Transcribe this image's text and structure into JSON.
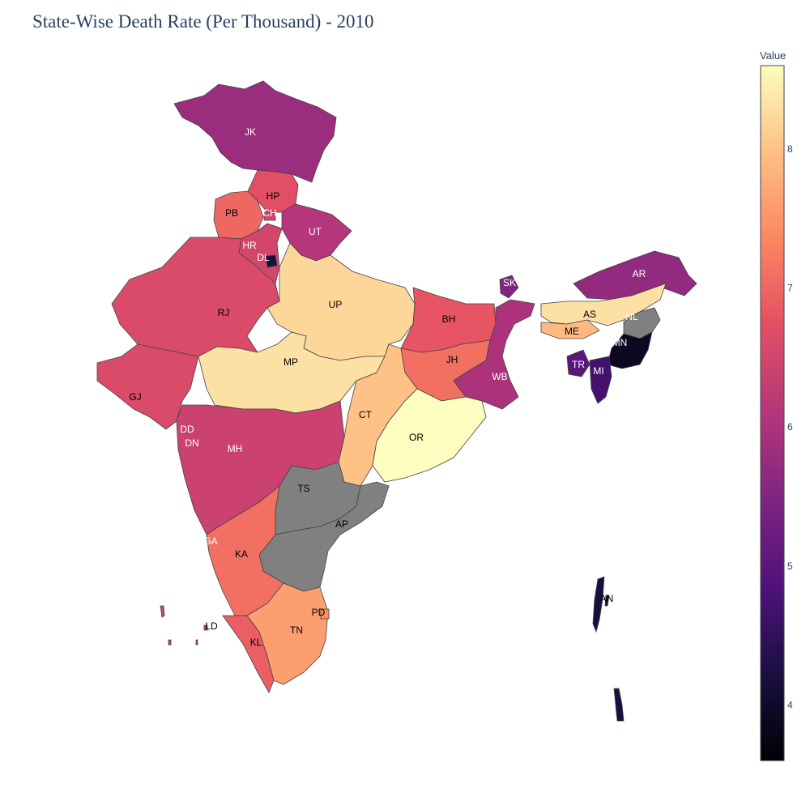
{
  "title": "State-Wise Death Rate (Per Thousand) - 2010",
  "colorbar": {
    "title": "Value",
    "ticks": [
      "4",
      "5",
      "6",
      "7",
      "8"
    ],
    "colorscale": "magma"
  },
  "missing_color": "#808080",
  "chart_data": {
    "type": "choropleth",
    "value_range": [
      3.6,
      8.6
    ],
    "regions": [
      {
        "code": "JK",
        "value": 5.8
      },
      {
        "code": "HP",
        "value": 6.7
      },
      {
        "code": "PB",
        "value": 7.0
      },
      {
        "code": "CH",
        "value": 6.5
      },
      {
        "code": "UT",
        "value": 6.1
      },
      {
        "code": "HR",
        "value": 6.5
      },
      {
        "code": "DL",
        "value": 4.2
      },
      {
        "code": "RJ",
        "value": 6.6
      },
      {
        "code": "UP",
        "value": 8.2
      },
      {
        "code": "BH",
        "value": 6.8
      },
      {
        "code": "SK",
        "value": 5.5
      },
      {
        "code": "AR",
        "value": 5.7
      },
      {
        "code": "AS",
        "value": 8.3
      },
      {
        "code": "NL",
        "value": null
      },
      {
        "code": "ME",
        "value": 7.9
      },
      {
        "code": "MN",
        "value": 3.9
      },
      {
        "code": "TR",
        "value": 5.0
      },
      {
        "code": "MI",
        "value": 4.7
      },
      {
        "code": "JH",
        "value": 7.1
      },
      {
        "code": "WB",
        "value": 6.0
      },
      {
        "code": "GJ",
        "value": 6.6
      },
      {
        "code": "MP",
        "value": 8.3
      },
      {
        "code": "CT",
        "value": 8.0
      },
      {
        "code": "OR",
        "value": 8.6
      },
      {
        "code": "DD",
        "value": 6.4
      },
      {
        "code": "DN",
        "value": 6.4
      },
      {
        "code": "MH",
        "value": 6.4
      },
      {
        "code": "TS",
        "value": null
      },
      {
        "code": "AP",
        "value": null
      },
      {
        "code": "GA",
        "value": 6.4
      },
      {
        "code": "KA",
        "value": 7.1
      },
      {
        "code": "KL",
        "value": 6.9
      },
      {
        "code": "TN",
        "value": 7.6
      },
      {
        "code": "PD",
        "value": 7.4
      },
      {
        "code": "LD",
        "value": 6.4
      },
      {
        "code": "AN",
        "value": 4.2
      }
    ]
  }
}
